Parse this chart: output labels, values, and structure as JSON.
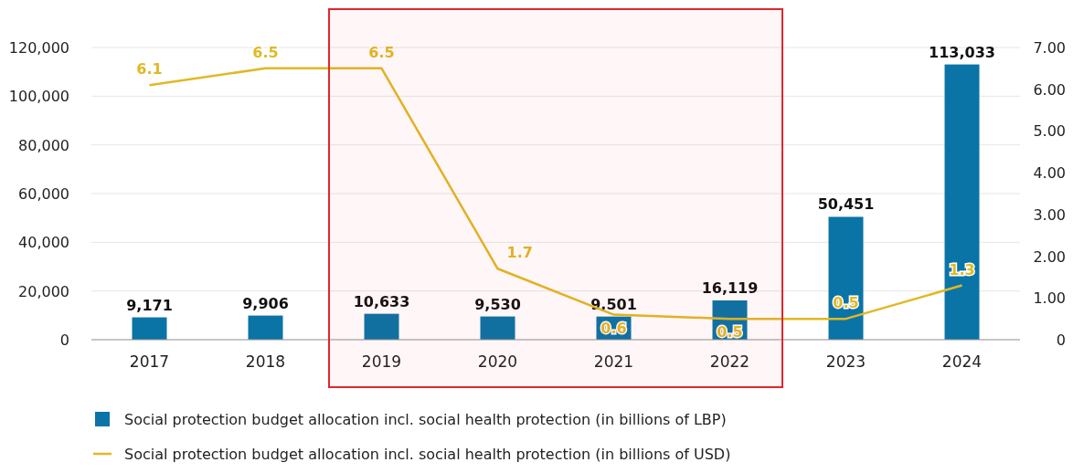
{
  "chart_data": {
    "type": "bar",
    "categories": [
      "2017",
      "2018",
      "2019",
      "2020",
      "2021",
      "2022",
      "2023",
      "2024"
    ],
    "series": [
      {
        "name": "Social protection budget allocation incl. social health protection (in billions of LBP)",
        "color": "#0a74a6",
        "values": [
          9171,
          9906,
          10633,
          9530,
          9501,
          16119,
          50451,
          113033
        ],
        "value_labels": [
          "9,171",
          "9,906",
          "10,633",
          "9,530",
          "9,501",
          "16,119",
          "50,451",
          "113,033"
        ]
      },
      {
        "type": "line",
        "axis": "y2",
        "name": "Social protection budget allocation incl. social health protection (in billions of USD)",
        "color": "#e2b823",
        "values": [
          6.1,
          6.5,
          6.5,
          1.7,
          0.6,
          0.5,
          0.5,
          1.3
        ],
        "value_labels": [
          "6.1",
          "6.5",
          "6.5",
          "1.7",
          "0.6",
          "0.5",
          "0.5",
          "1.3"
        ]
      }
    ],
    "ylim": [
      0,
      120000
    ],
    "yticks": [
      0,
      {
        "value": 20000,
        "label": "20,000"
      },
      {
        "value": 40000,
        "label": "40,000"
      },
      {
        "value": 60000,
        "label": "60,000"
      },
      {
        "value": 80000,
        "label": "80,000"
      },
      {
        "value": 100000,
        "label": "100,000"
      },
      {
        "value": 120000,
        "label": "120,000"
      }
    ],
    "y2lim": [
      0,
      7
    ],
    "y2ticks": [
      0,
      {
        "value": 1,
        "label": "1.00"
      },
      {
        "value": 2,
        "label": "2.00"
      },
      {
        "value": 3,
        "label": "3.00"
      },
      {
        "value": 4,
        "label": "4.00"
      },
      {
        "value": 5,
        "label": "5.00"
      },
      {
        "value": 6,
        "label": "6.00"
      },
      {
        "value": 7,
        "label": "7.00"
      }
    ],
    "bands": [
      {
        "axis": "x",
        "from": "2019",
        "to": "2022",
        "color": "#e0262e"
      }
    ],
    "grid": "y",
    "legend": "bottom",
    "marker": "none",
    "line_style": "solid"
  }
}
